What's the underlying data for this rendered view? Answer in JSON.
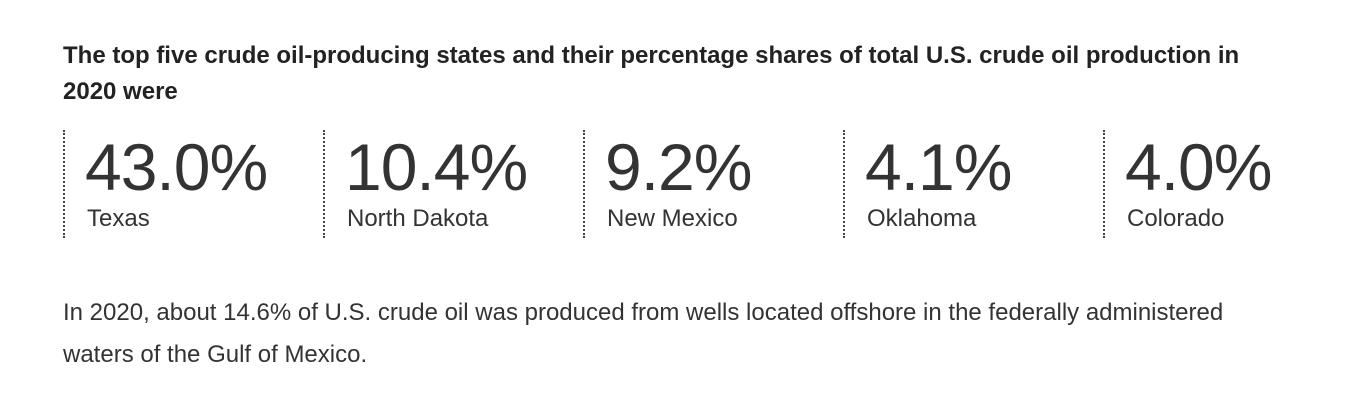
{
  "heading": "The top five crude oil-producing states and their percentage shares of total U.S. crude oil production in 2020 were",
  "stats": [
    {
      "value": "43.0%",
      "label": "Texas"
    },
    {
      "value": "10.4%",
      "label": "North Dakota"
    },
    {
      "value": "9.2%",
      "label": "New Mexico"
    },
    {
      "value": "4.1%",
      "label": "Oklahoma"
    },
    {
      "value": "4.0%",
      "label": "Colorado"
    }
  ],
  "paragraph": "In 2020, about 14.6% of U.S. crude oil was produced from wells located offshore in the federally administered waters of the Gulf of Mexico."
}
